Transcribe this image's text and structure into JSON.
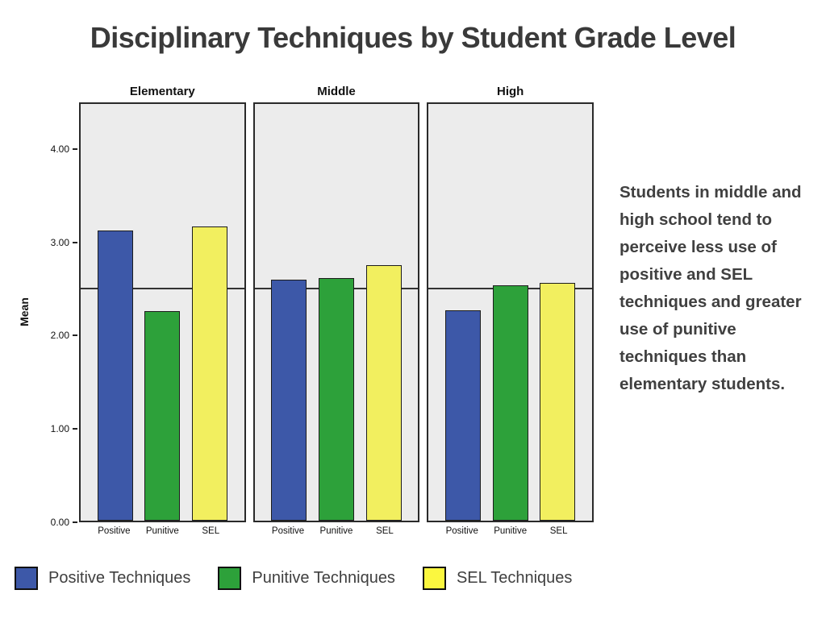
{
  "slide": {
    "title": "Disciplinary Techniques by Student Grade Level",
    "annotation": "Students in middle and high school tend to perceive less use of positive and SEL techniques and greater use of punitive techniques than elementary students."
  },
  "chart_data": {
    "type": "bar",
    "title": "Disciplinary Techniques by Student Grade Level",
    "panels": [
      "Elementary",
      "Middle",
      "High"
    ],
    "categories": [
      "Positive",
      "Punitive",
      "SEL"
    ],
    "series": [
      {
        "panel": "Elementary",
        "values": [
          3.13,
          2.26,
          3.18
        ]
      },
      {
        "panel": "Middle",
        "values": [
          2.6,
          2.62,
          2.76
        ]
      },
      {
        "panel": "High",
        "values": [
          2.27,
          2.54,
          2.57
        ]
      }
    ],
    "ylabel": "Mean",
    "yticks": [
      "4.00",
      "3.00",
      "2.00",
      "1.00",
      "0.00"
    ],
    "ylim": [
      0,
      4.5
    ],
    "reference_line": 2.5,
    "grid": false,
    "legend_position": "bottom",
    "plot_background": "#ECECEC",
    "colors": {
      "Positive": "#3D58A8",
      "Punitive": "#2DA13A",
      "SEL": "#F2EF5F"
    }
  },
  "legend": [
    {
      "label": "Positive Techniques",
      "color": "#3D58A8"
    },
    {
      "label": "Punitive Techniques",
      "color": "#2DA13A"
    },
    {
      "label": "SEL Techniques",
      "color": "#FBF73F"
    }
  ]
}
